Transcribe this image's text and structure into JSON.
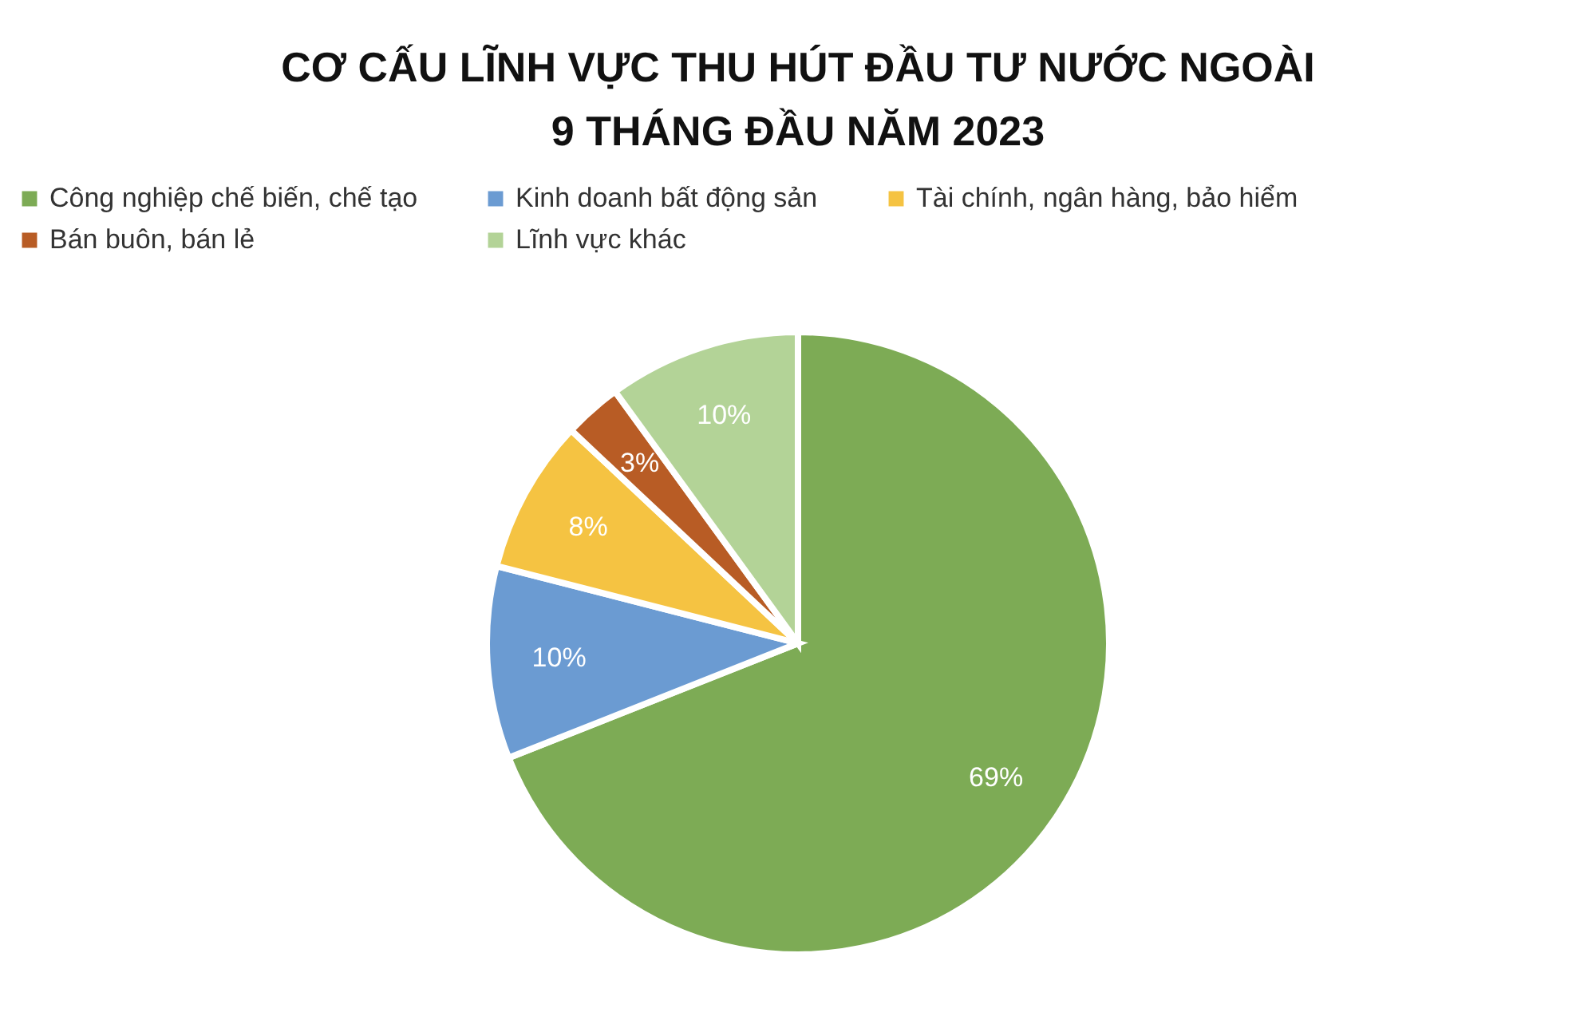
{
  "chart_data": {
    "type": "pie",
    "title": "CƠ CẤU LĨNH VỰC THU HÚT ĐẦU TƯ NƯỚC NGOÀI\n9 THÁNG ĐẦU NĂM 2023",
    "categories": [
      "Công nghiệp chế biến, chế tạo",
      "Kinh doanh bất động sản",
      "Tài chính, ngân hàng, bảo hiểm",
      "Bán buôn, bán lẻ",
      "Lĩnh vực khác"
    ],
    "values": [
      69,
      10,
      8,
      3,
      10
    ],
    "colors": [
      "#7dab55",
      "#6b9bd2",
      "#f5c342",
      "#b85c25",
      "#b3d397"
    ],
    "value_labels": [
      "69%",
      "10%",
      "8%",
      "3%",
      "10%"
    ],
    "legend": "top"
  }
}
